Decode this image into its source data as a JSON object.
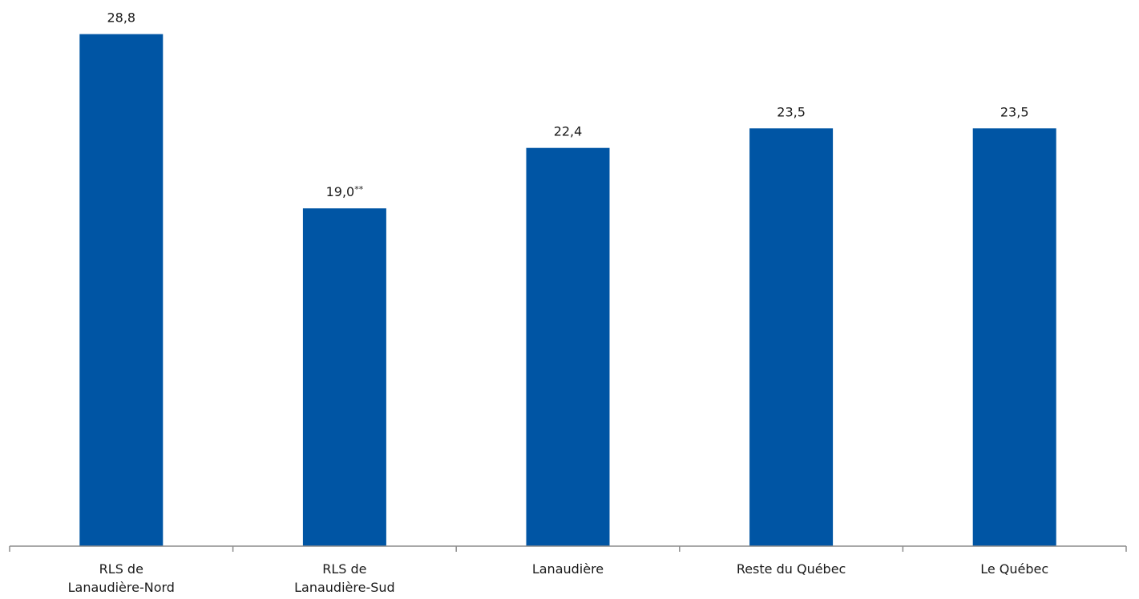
{
  "chart_data": {
    "type": "bar",
    "title": "",
    "xlabel": "",
    "ylabel": "",
    "ylim": [
      0,
      30
    ],
    "grid": false,
    "legend": "none",
    "categories": [
      [
        "RLS de",
        "Lanaudière-Nord"
      ],
      [
        "RLS de",
        "Lanaudière-Sud"
      ],
      [
        "Lanaudière"
      ],
      [
        "Reste du Québec"
      ],
      [
        "Le Québec"
      ]
    ],
    "values": [
      28.8,
      19.0,
      22.4,
      23.5,
      23.5
    ],
    "data_labels": [
      "28,8",
      "19,0",
      "22,4",
      "23,5",
      "23,5"
    ],
    "label_suffixes": [
      "",
      "**",
      "",
      "",
      ""
    ],
    "bar_color": "#0055A4",
    "axis_color": "#8c8c8c"
  }
}
